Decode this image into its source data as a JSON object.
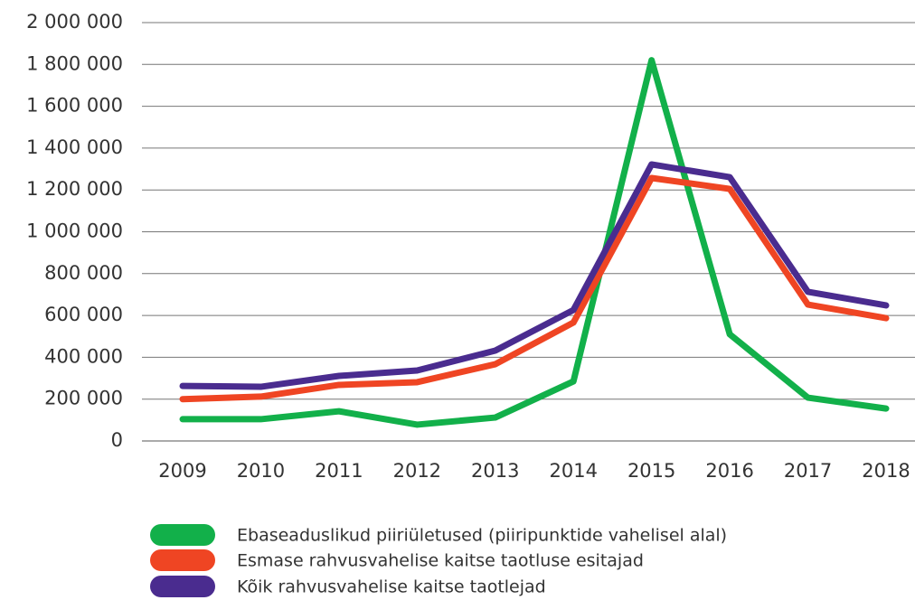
{
  "chart_data": {
    "type": "line",
    "categories": [
      "2009",
      "2010",
      "2011",
      "2012",
      "2013",
      "2014",
      "2015",
      "2016",
      "2017",
      "2018"
    ],
    "series": [
      {
        "name": "Ebaseaduslikud piiriületused (piiripunktide vahelisel alal)",
        "color": "#12b04a",
        "values": [
          104000,
          104000,
          142000,
          78000,
          112000,
          285000,
          1820000,
          510000,
          207000,
          155000
        ]
      },
      {
        "name": "Esmase rahvusvahelise kaitse taotluse esitajad",
        "color": "#ef4523",
        "values": [
          200000,
          212000,
          268000,
          281000,
          367000,
          566000,
          1257000,
          1205000,
          652000,
          587000
        ]
      },
      {
        "name": "Kõik rahvusvahelise kaitse taotlejad",
        "color": "#4a2c8f",
        "values": [
          263000,
          259000,
          311000,
          337000,
          432000,
          626000,
          1322000,
          1261000,
          713000,
          648000
        ]
      }
    ],
    "ylim": [
      0,
      2000000
    ],
    "yticks": [
      0,
      {
        "value": 200000,
        "label": "200 000"
      },
      {
        "value": 400000,
        "label": "400 000"
      },
      {
        "value": 600000,
        "label": "600 000"
      },
      {
        "value": 800000,
        "label": "800 000"
      },
      {
        "value": 1000000,
        "label": "1 000 000"
      },
      {
        "value": 1200000,
        "label": "1 200 000"
      },
      {
        "value": 1400000,
        "label": "1 400 000"
      },
      {
        "value": 1600000,
        "label": "1 600 000"
      },
      {
        "value": 1800000,
        "label": "1 800 000"
      },
      {
        "value": 2000000,
        "label": "2 000 000"
      }
    ],
    "grid": true
  }
}
